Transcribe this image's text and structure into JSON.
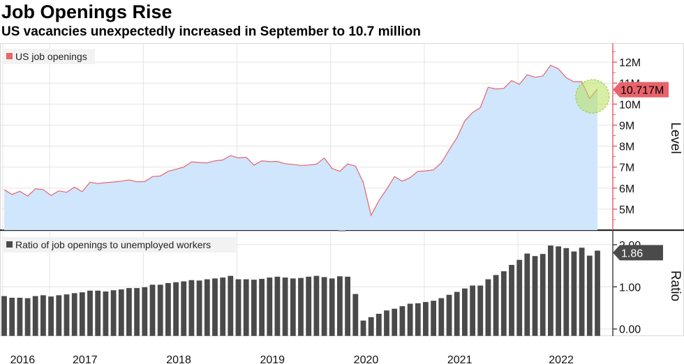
{
  "title": "Job Openings Rise",
  "subtitle": "US vacancies unexpectedly increased in September to 10.7 million",
  "chart_data": [
    {
      "type": "area",
      "series": [
        {
          "name": "US job openings",
          "color": "#e8636b",
          "fill": "#cfe6fd",
          "values": [
            5.93,
            5.7,
            5.85,
            5.62,
            5.97,
            5.93,
            5.65,
            5.87,
            5.8,
            6.05,
            5.83,
            6.28,
            6.22,
            6.26,
            6.29,
            6.33,
            6.39,
            6.3,
            6.31,
            6.55,
            6.58,
            6.8,
            6.9,
            7.0,
            7.25,
            7.22,
            7.2,
            7.3,
            7.34,
            7.55,
            7.44,
            7.47,
            7.1,
            7.3,
            7.26,
            7.27,
            7.16,
            7.13,
            7.08,
            7.1,
            7.14,
            7.43,
            6.94,
            6.8,
            7.15,
            7.05,
            6.27,
            4.7,
            5.4,
            5.95,
            6.55,
            6.33,
            6.5,
            6.8,
            6.82,
            6.87,
            7.2,
            7.82,
            8.4,
            9.2,
            9.6,
            9.83,
            10.8,
            10.72,
            10.75,
            11.12,
            10.94,
            11.4,
            11.28,
            11.34,
            11.85,
            11.68,
            11.26,
            11.06,
            11.07,
            10.27,
            10.72
          ],
          "last_label": "10.717M"
        }
      ],
      "x_labels": [
        "2016",
        "2017",
        "2018",
        "2019",
        "2020",
        "2021",
        "2022"
      ],
      "y_ticks": [
        "5M",
        "6M",
        "7M",
        "8M",
        "9M",
        "10M",
        "11M",
        "12M"
      ],
      "ylabel": "Level",
      "ylim": [
        4,
        12.9
      ],
      "highlight": {
        "index": 75,
        "color": "#b7e05a"
      },
      "legend_placement": "top-left",
      "grid": true
    },
    {
      "type": "bar",
      "series": [
        {
          "name": "Ratio of job openings to unemployed workers",
          "color": "#4a4a4a",
          "values": [
            0.78,
            0.74,
            0.74,
            0.73,
            0.78,
            0.8,
            0.77,
            0.8,
            0.82,
            0.85,
            0.87,
            0.91,
            0.91,
            0.89,
            0.92,
            0.94,
            0.97,
            0.97,
            0.99,
            1.05,
            1.05,
            1.09,
            1.11,
            1.13,
            1.16,
            1.15,
            1.18,
            1.2,
            1.22,
            1.26,
            1.18,
            1.18,
            1.17,
            1.19,
            1.22,
            1.24,
            1.22,
            1.2,
            1.21,
            1.24,
            1.26,
            1.23,
            1.2,
            1.25,
            1.24,
            0.83,
            0.2,
            0.28,
            0.36,
            0.44,
            0.48,
            0.54,
            0.6,
            0.61,
            0.64,
            0.67,
            0.73,
            0.81,
            0.88,
            0.96,
            1.03,
            1.03,
            1.18,
            1.28,
            1.37,
            1.52,
            1.64,
            1.79,
            1.73,
            1.78,
            1.98,
            1.96,
            1.92,
            1.84,
            1.93,
            1.74,
            1.86
          ],
          "last_label": "1.86"
        }
      ],
      "y_ticks": [
        "0.00",
        "1.00",
        "2.00"
      ],
      "ylabel": "Ratio",
      "ylim": [
        -0.17,
        2.33
      ],
      "legend_placement": "top-left"
    }
  ]
}
